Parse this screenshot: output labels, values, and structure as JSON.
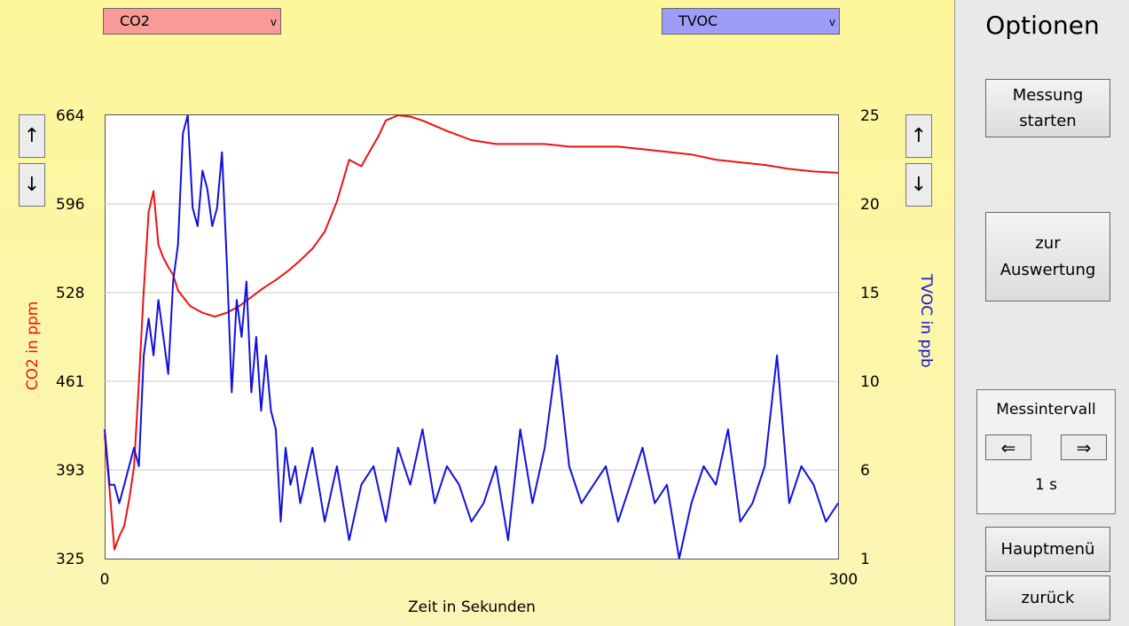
{
  "header": {
    "left_select": {
      "value": "CO2",
      "color": "#f89a98"
    },
    "right_select": {
      "value": "TVOC",
      "color": "#9d9cf7"
    }
  },
  "sidebar": {
    "title": "Optionen",
    "start_label_line1": "Messung",
    "start_label_line2": "starten",
    "eval_label_line1": "zur",
    "eval_label_line2": "Auswertung",
    "interval_title": "Messintervall",
    "interval_value": "1 s",
    "main_menu_label": "Hauptmenü",
    "back_label": "zurück"
  },
  "icons": {
    "up": "↑",
    "down": "↓",
    "left": "⇐",
    "right": "⇒",
    "chevron": "v"
  },
  "chart_data": {
    "type": "line",
    "xlabel": "Zeit in Sekunden",
    "ylabel_left": "CO2 in ppm",
    "ylabel_right": "TVOC in ppb",
    "xlim": [
      0,
      300
    ],
    "x_ticks": [
      "0",
      "300"
    ],
    "ylim_left": [
      325,
      664
    ],
    "left_ticks": [
      "664",
      "596",
      "528",
      "461",
      "393",
      "325"
    ],
    "ylim_right": [
      1,
      25
    ],
    "right_ticks": [
      "25",
      "20",
      "15",
      "10",
      "6",
      "1"
    ],
    "grid": true,
    "series": [
      {
        "name": "CO2",
        "axis": "left",
        "color": "#ee1111",
        "x": [
          0,
          2,
          4,
          6,
          8,
          10,
          12,
          14,
          16,
          18,
          20,
          22,
          24,
          26,
          28,
          30,
          35,
          40,
          45,
          50,
          55,
          60,
          65,
          70,
          75,
          80,
          85,
          90,
          95,
          100,
          105,
          108,
          112,
          115,
          120,
          125,
          130,
          135,
          140,
          150,
          160,
          170,
          180,
          190,
          200,
          210,
          220,
          230,
          240,
          250,
          260,
          270,
          280,
          290,
          300
        ],
        "y": [
          420,
          378,
          332,
          342,
          350,
          370,
          395,
          460,
          530,
          590,
          606,
          565,
          555,
          548,
          542,
          530,
          518,
          513,
          510,
          513,
          518,
          525,
          532,
          538,
          545,
          553,
          562,
          575,
          598,
          630,
          625,
          635,
          648,
          660,
          664,
          663,
          660,
          656,
          652,
          645,
          642,
          642,
          642,
          640,
          640,
          640,
          638,
          636,
          634,
          630,
          628,
          626,
          623,
          621,
          620
        ]
      },
      {
        "name": "TVOC",
        "axis": "right",
        "color": "#1111dd",
        "x": [
          0,
          2,
          4,
          6,
          8,
          10,
          12,
          14,
          16,
          18,
          20,
          22,
          24,
          26,
          28,
          30,
          32,
          34,
          36,
          38,
          40,
          42,
          44,
          46,
          48,
          50,
          52,
          54,
          56,
          58,
          60,
          62,
          64,
          66,
          68,
          70,
          72,
          74,
          76,
          78,
          80,
          85,
          90,
          95,
          100,
          105,
          110,
          115,
          120,
          125,
          130,
          135,
          140,
          145,
          150,
          155,
          160,
          165,
          170,
          175,
          180,
          185,
          190,
          195,
          200,
          205,
          210,
          215,
          220,
          225,
          230,
          235,
          240,
          245,
          250,
          255,
          260,
          265,
          270,
          275,
          280,
          285,
          290,
          295,
          300
        ],
        "y": [
          8,
          5,
          5,
          4,
          5,
          6,
          7,
          6,
          12,
          14,
          12,
          15,
          13,
          11,
          16,
          18,
          24,
          25,
          20,
          19,
          22,
          21,
          19,
          20,
          23,
          17,
          10,
          15,
          13,
          16,
          10,
          13,
          9,
          12,
          9,
          8,
          3,
          7,
          5,
          6,
          4,
          7,
          3,
          6,
          2,
          5,
          6,
          3,
          7,
          5,
          8,
          4,
          6,
          5,
          3,
          4,
          6,
          2,
          8,
          4,
          7,
          12,
          6,
          4,
          5,
          6,
          3,
          5,
          7,
          4,
          5,
          1,
          4,
          6,
          5,
          8,
          3,
          4,
          6,
          12,
          4,
          6,
          5,
          3,
          4
        ]
      }
    ]
  }
}
